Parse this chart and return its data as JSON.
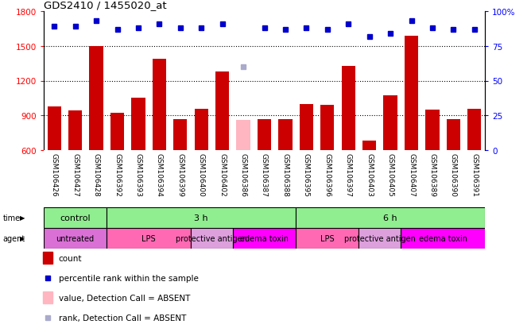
{
  "title": "GDS2410 / 1455020_at",
  "samples": [
    "GSM106426",
    "GSM106427",
    "GSM106428",
    "GSM106392",
    "GSM106393",
    "GSM106394",
    "GSM106399",
    "GSM106400",
    "GSM106402",
    "GSM106386",
    "GSM106387",
    "GSM106388",
    "GSM106395",
    "GSM106396",
    "GSM106397",
    "GSM106403",
    "GSM106405",
    "GSM106407",
    "GSM106389",
    "GSM106390",
    "GSM106391"
  ],
  "bar_values": [
    980,
    940,
    1500,
    920,
    1050,
    1390,
    870,
    960,
    1280,
    860,
    870,
    870,
    1000,
    990,
    1330,
    680,
    1070,
    1590,
    950,
    870,
    960
  ],
  "bar_absent": [
    false,
    false,
    false,
    false,
    false,
    false,
    false,
    false,
    false,
    true,
    false,
    false,
    false,
    false,
    false,
    false,
    false,
    false,
    false,
    false,
    false
  ],
  "rank_values": [
    89,
    89,
    93,
    87,
    88,
    91,
    88,
    88,
    91,
    60,
    88,
    87,
    88,
    87,
    91,
    82,
    84,
    93,
    88,
    87,
    87
  ],
  "rank_absent": [
    false,
    false,
    false,
    false,
    false,
    false,
    false,
    false,
    false,
    true,
    false,
    false,
    false,
    false,
    false,
    false,
    false,
    false,
    false,
    false,
    false
  ],
  "ylim_left": [
    600,
    1800
  ],
  "ylim_right": [
    0,
    100
  ],
  "yticks_left": [
    600,
    900,
    1200,
    1500,
    1800
  ],
  "yticks_right": [
    0,
    25,
    50,
    75,
    100
  ],
  "grid_lines": [
    900,
    1200,
    1500
  ],
  "sep_positions": [
    3,
    7,
    9,
    12,
    15,
    17
  ],
  "time_groups": [
    {
      "label": "control",
      "start": 0,
      "end": 3,
      "color": "#90EE90"
    },
    {
      "label": "3 h",
      "start": 3,
      "end": 12,
      "color": "#90EE90"
    },
    {
      "label": "6 h",
      "start": 12,
      "end": 21,
      "color": "#90EE90"
    }
  ],
  "agent_groups": [
    {
      "label": "untreated",
      "start": 0,
      "end": 3,
      "color": "#DA70D6"
    },
    {
      "label": "LPS",
      "start": 3,
      "end": 7,
      "color": "#FF69B4"
    },
    {
      "label": "protective antigen",
      "start": 7,
      "end": 9,
      "color": "#DDA0DD"
    },
    {
      "label": "edema toxin",
      "start": 9,
      "end": 12,
      "color": "#FF00FF"
    },
    {
      "label": "LPS",
      "start": 12,
      "end": 15,
      "color": "#FF69B4"
    },
    {
      "label": "protective antigen",
      "start": 15,
      "end": 17,
      "color": "#DDA0DD"
    },
    {
      "label": "edema toxin",
      "start": 17,
      "end": 21,
      "color": "#FF00FF"
    }
  ],
  "bar_color": "#CC0000",
  "bar_absent_color": "#FFB6C1",
  "rank_color": "#0000CC",
  "rank_absent_color": "#AAAACC",
  "legend_items": [
    {
      "color": "#CC0000",
      "type": "rect",
      "label": "count"
    },
    {
      "color": "#0000CC",
      "type": "square",
      "label": "percentile rank within the sample"
    },
    {
      "color": "#FFB6C1",
      "type": "rect",
      "label": "value, Detection Call = ABSENT"
    },
    {
      "color": "#AAAACC",
      "type": "square",
      "label": "rank, Detection Call = ABSENT"
    }
  ]
}
